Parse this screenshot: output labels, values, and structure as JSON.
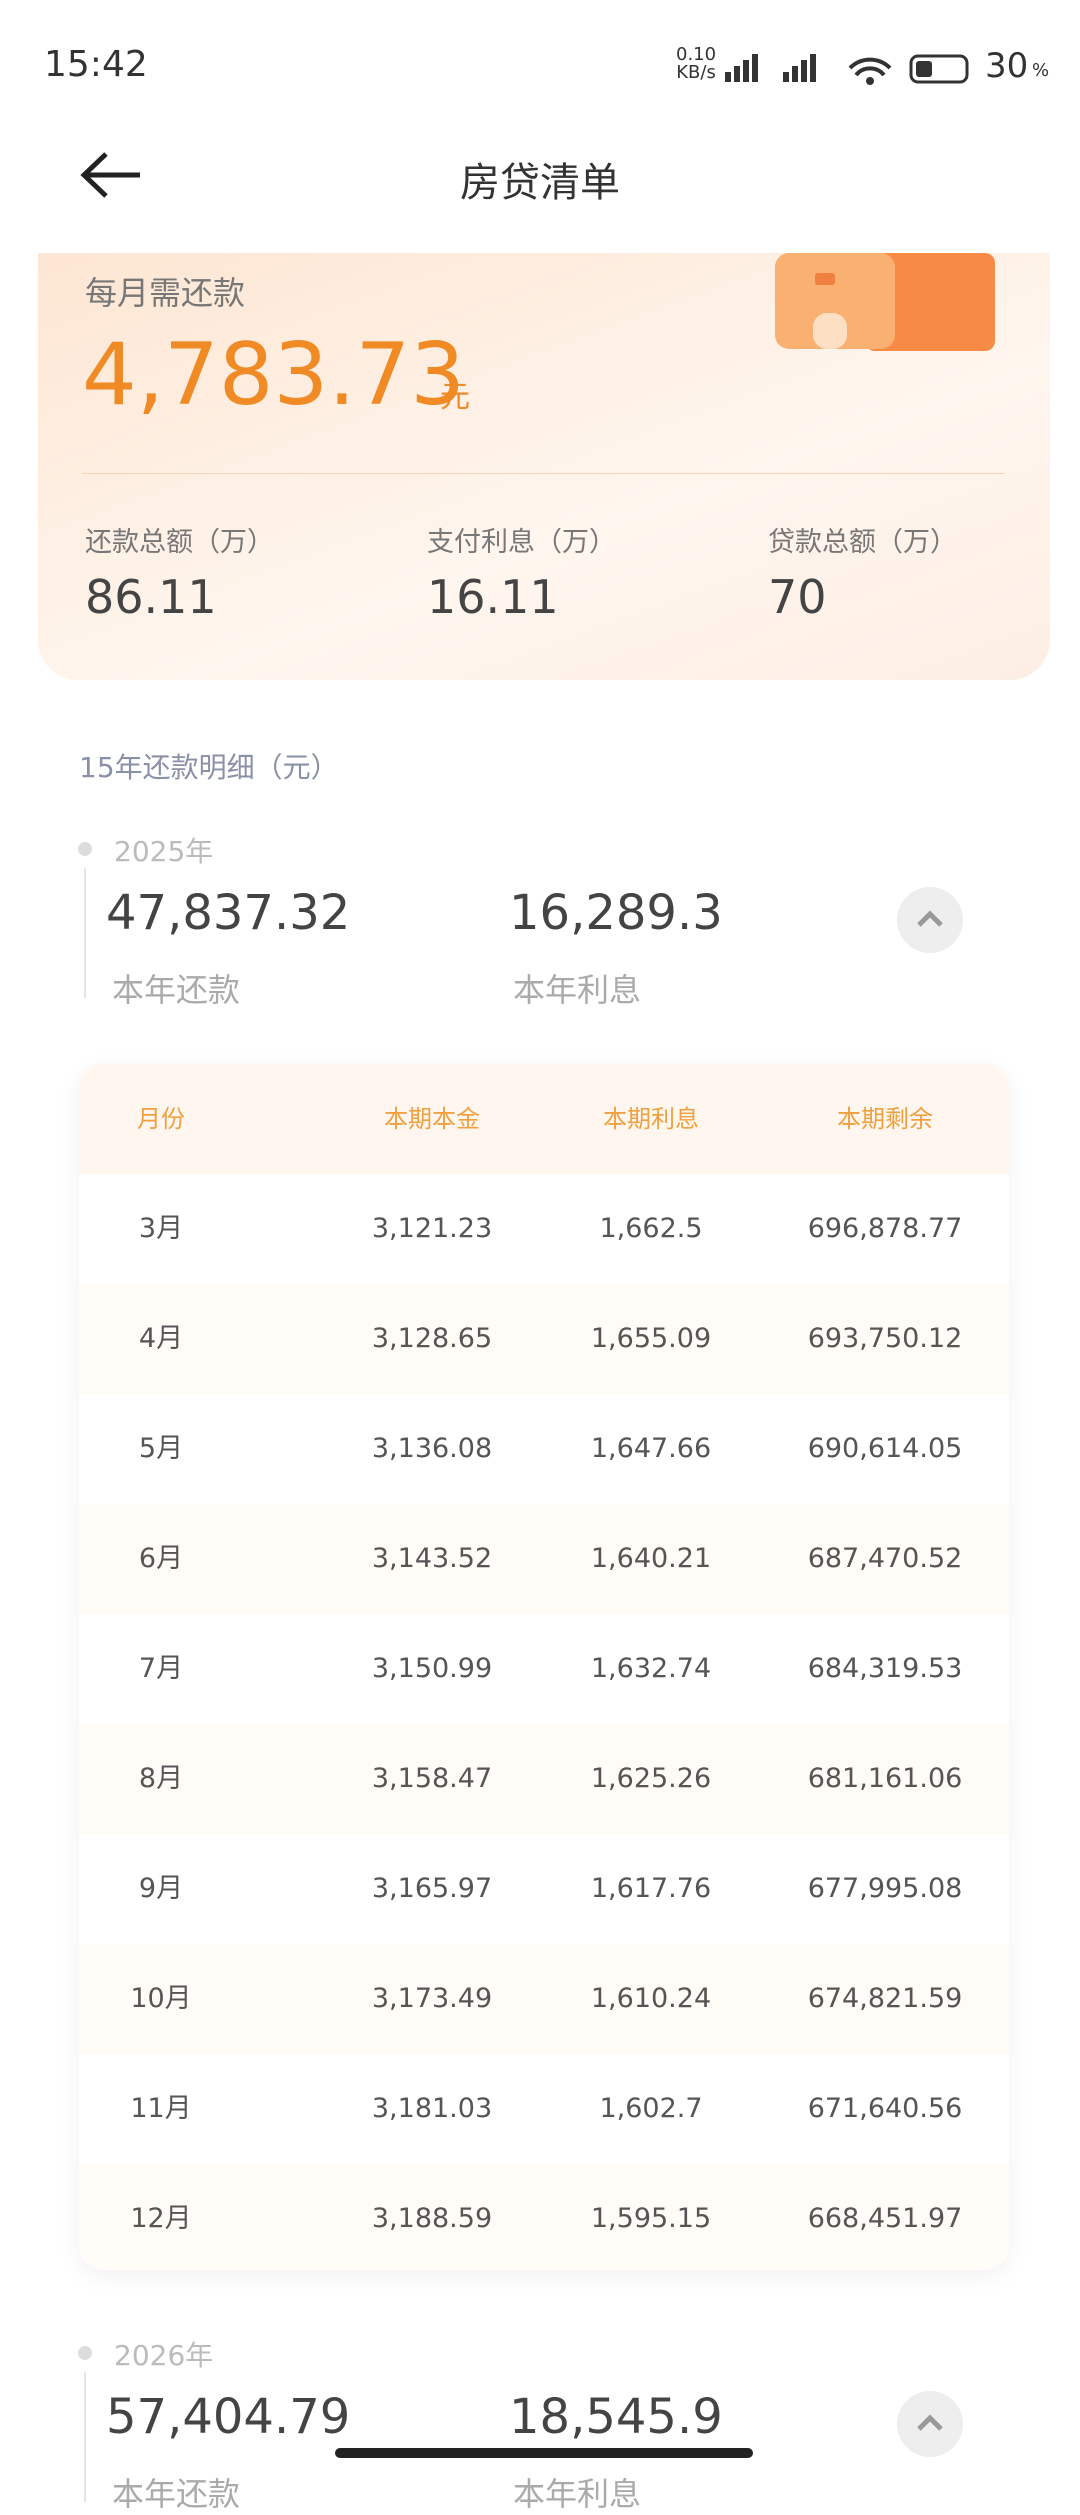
{
  "status_bar": {
    "time": "15:42",
    "speed": "0.10",
    "speed_unit": "KB/s",
    "battery": "30"
  },
  "header": {
    "title": "房贷清单"
  },
  "summary": {
    "monthly_label": "每月需还款",
    "monthly_value": "4,783.73",
    "monthly_unit": "元",
    "stats": [
      {
        "label": "还款总额（万）",
        "value": "86.11"
      },
      {
        "label": "支付利息（万）",
        "value": "16.11"
      },
      {
        "label": "贷款总额（万）",
        "value": "70"
      }
    ]
  },
  "section_title": "15年还款明细（元）",
  "years": [
    {
      "year": "2025年",
      "total": "47,837.32",
      "total_label": "本年还款",
      "interest": "16,289.3",
      "interest_label": "本年利息",
      "table": {
        "columns": [
          "月份",
          "本期本金",
          "本期利息",
          "本期剩余"
        ],
        "rows": [
          [
            "3月",
            "3,121.23",
            "1,662.5",
            "696,878.77"
          ],
          [
            "4月",
            "3,128.65",
            "1,655.09",
            "693,750.12"
          ],
          [
            "5月",
            "3,136.08",
            "1,647.66",
            "690,614.05"
          ],
          [
            "6月",
            "3,143.52",
            "1,640.21",
            "687,470.52"
          ],
          [
            "7月",
            "3,150.99",
            "1,632.74",
            "684,319.53"
          ],
          [
            "8月",
            "3,158.47",
            "1,625.26",
            "681,161.06"
          ],
          [
            "9月",
            "3,165.97",
            "1,617.76",
            "677,995.08"
          ],
          [
            "10月",
            "3,173.49",
            "1,610.24",
            "674,821.59"
          ],
          [
            "11月",
            "3,181.03",
            "1,602.7",
            "671,640.56"
          ],
          [
            "12月",
            "3,188.59",
            "1,595.15",
            "668,451.97"
          ]
        ]
      }
    },
    {
      "year": "2026年",
      "total": "57,404.79",
      "total_label": "本年还款",
      "interest": "18,545.9",
      "interest_label": "本年利息"
    }
  ]
}
